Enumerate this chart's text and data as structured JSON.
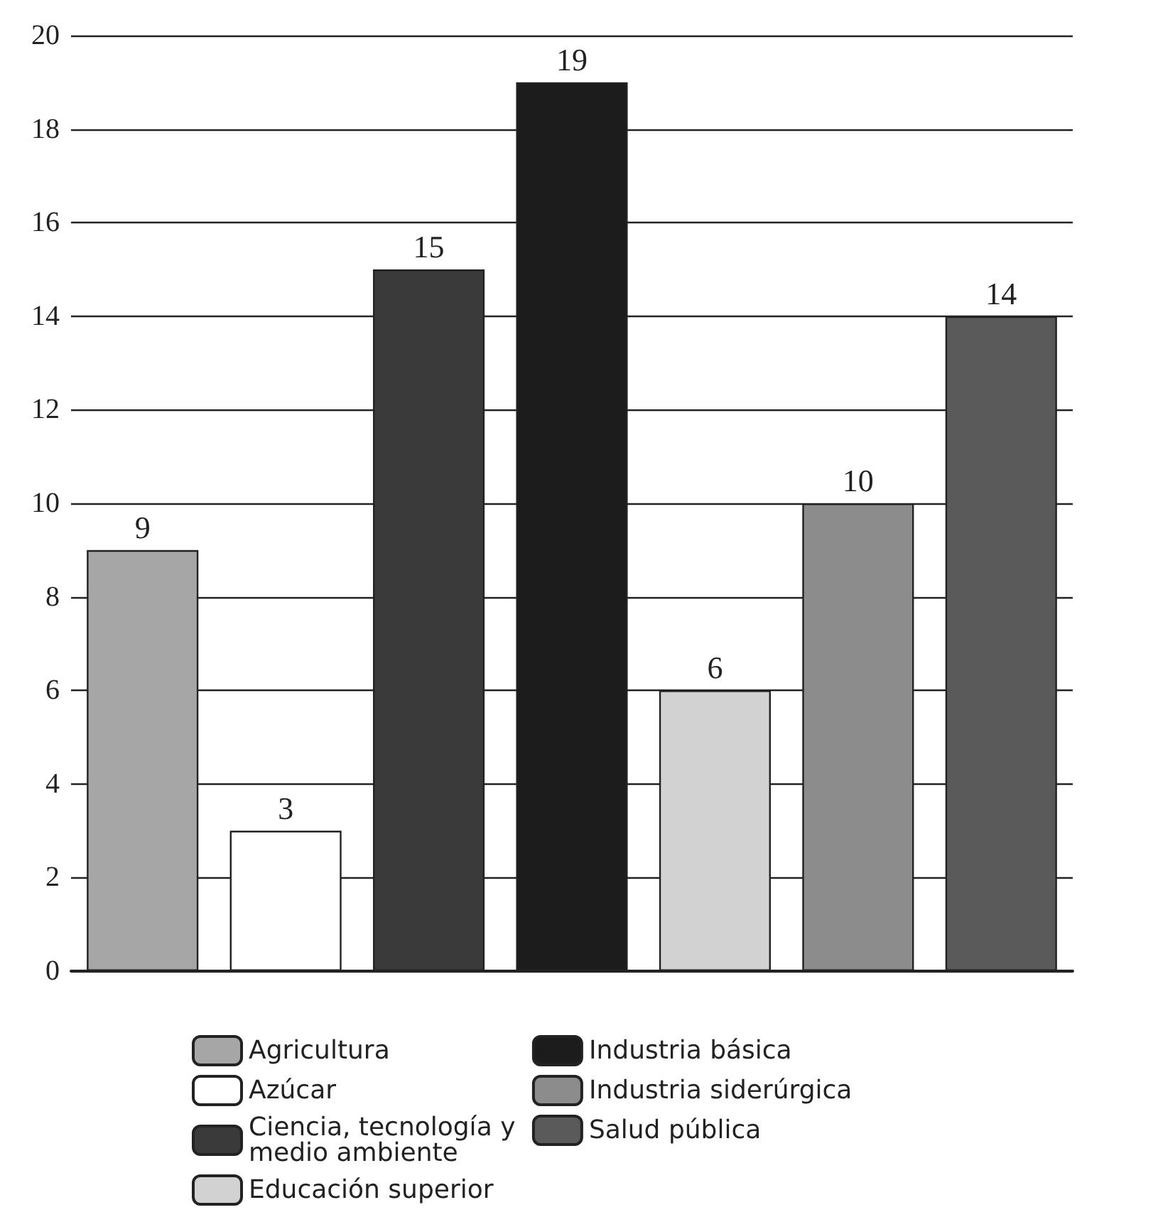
{
  "chart_data": {
    "type": "bar",
    "stacked": true,
    "categories": [
      null,
      null,
      null,
      null,
      null,
      null,
      null
    ],
    "series": [
      {
        "name": "Agricultura",
        "color": "#a6a6a6",
        "values": [
          9,
          null,
          null,
          null,
          null,
          null,
          null
        ]
      },
      {
        "name": "Azúcar",
        "color": "#ffffff",
        "values": [
          null,
          3,
          null,
          null,
          null,
          null,
          null
        ]
      },
      {
        "name": "Ciencia, tecnología y medio ambiente",
        "color": "#3a3a3a",
        "values": [
          null,
          null,
          15,
          null,
          null,
          null,
          null
        ]
      },
      {
        "name": "Educación superior",
        "color": "#d2d2d2",
        "values": [
          null,
          null,
          null,
          null,
          6,
          null,
          null
        ]
      },
      {
        "name": "Industria básica",
        "color": "#1c1c1c",
        "values": [
          null,
          null,
          null,
          19,
          null,
          null,
          null
        ]
      },
      {
        "name": "Industria siderúrgica",
        "color": "#8c8c8c",
        "values": [
          null,
          null,
          null,
          null,
          null,
          10,
          null
        ]
      },
      {
        "name": "Salud pública",
        "color": "#5a5a5a",
        "values": [
          null,
          null,
          null,
          null,
          null,
          null,
          14
        ]
      }
    ],
    "ylim": [
      0,
      20
    ],
    "yticks": [
      0,
      2,
      4,
      6,
      8,
      10,
      12,
      14,
      16,
      18,
      20
    ],
    "grid": "y",
    "legend": "bottom",
    "data_labels": true
  }
}
